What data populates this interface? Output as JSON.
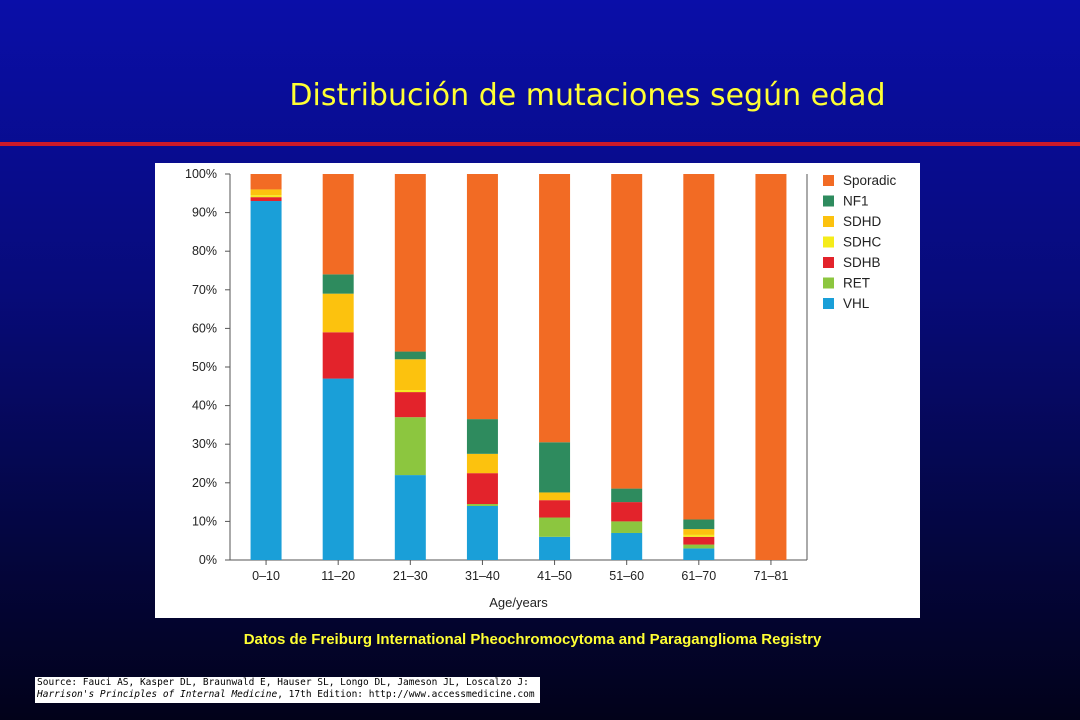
{
  "slide": {
    "title": "Distribución de mutaciones según edad",
    "caption": "Datos de Freiburg International Pheochromocytoma and Paraganglioma Registry",
    "source_line1": "Source: Fauci AS, Kasper DL, Braunwald E, Hauser SL, Longo DL, Jameson JL, Loscalzo J:",
    "source_book": "Harrison's Principles of Internal Medicine",
    "source_line2_rest": ", 17th Edition: http://www.accessmedicine.com"
  },
  "chart_data": {
    "type": "bar",
    "stacked": true,
    "title": "",
    "xlabel": "Age/years",
    "ylabel": "",
    "ylim": [
      0,
      100
    ],
    "yticks": [
      "0%",
      "10%",
      "20%",
      "30%",
      "40%",
      "50%",
      "60%",
      "70%",
      "80%",
      "90%",
      "100%"
    ],
    "grid": false,
    "legend_position": "right",
    "categories": [
      "0–10",
      "11–20",
      "21–30",
      "31–40",
      "41–50",
      "51–60",
      "61–70",
      "71–81"
    ],
    "series": [
      {
        "name": "VHL",
        "color": "#1a9fd8",
        "values": [
          93,
          47,
          22,
          14,
          6,
          7,
          3,
          0
        ]
      },
      {
        "name": "RET",
        "color": "#8cc63f",
        "values": [
          0,
          0,
          15,
          0.5,
          5,
          3,
          1,
          0
        ]
      },
      {
        "name": "SDHB",
        "color": "#e3232b",
        "values": [
          1,
          12,
          6.5,
          8,
          4.5,
          5,
          2,
          0
        ]
      },
      {
        "name": "SDHC",
        "color": "#f5ec1a",
        "values": [
          0.5,
          0,
          0.5,
          0,
          0,
          0,
          0.5,
          0
        ]
      },
      {
        "name": "SDHD",
        "color": "#fcc20e",
        "values": [
          1.5,
          10,
          8,
          5,
          2,
          0,
          1.5,
          0
        ]
      },
      {
        "name": "NF1",
        "color": "#2e8b5e",
        "values": [
          0,
          5,
          2,
          9,
          13,
          3.5,
          2.5,
          0
        ]
      },
      {
        "name": "Sporadic",
        "color": "#f26b24",
        "values": [
          4,
          26,
          46,
          63.5,
          69.5,
          81.5,
          89.5,
          100
        ]
      }
    ],
    "legend_order": [
      "Sporadic",
      "NF1",
      "SDHD",
      "SDHC",
      "SDHB",
      "RET",
      "VHL"
    ]
  }
}
